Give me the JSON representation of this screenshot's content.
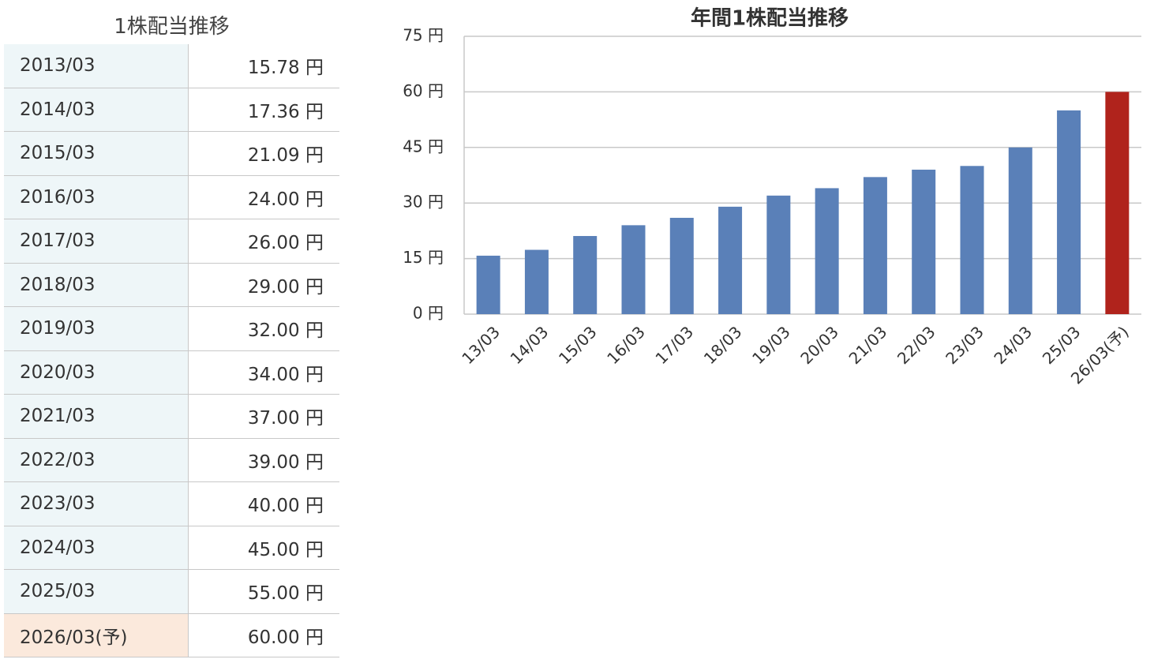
{
  "table": {
    "title": "1株配当推移",
    "rows": [
      [
        "2013/03",
        "15.78 円"
      ],
      [
        "2014/03",
        "17.36 円"
      ],
      [
        "2015/03",
        "21.09 円"
      ],
      [
        "2016/03",
        "24.00 円"
      ],
      [
        "2017/03",
        "26.00 円"
      ],
      [
        "2018/03",
        "29.00 円"
      ],
      [
        "2019/03",
        "32.00 円"
      ],
      [
        "2020/03",
        "34.00 円"
      ],
      [
        "2021/03",
        "37.00 円"
      ],
      [
        "2022/03",
        "39.00 円"
      ],
      [
        "2023/03",
        "40.00 円"
      ],
      [
        "2024/03",
        "45.00 円"
      ],
      [
        "2025/03",
        "55.00 円"
      ],
      [
        "2026/03(予)",
        "60.00 円"
      ]
    ]
  },
  "chart_data": {
    "type": "bar",
    "title": "年間1株配当推移",
    "categories": [
      "13/03",
      "14/03",
      "15/03",
      "16/03",
      "17/03",
      "18/03",
      "19/03",
      "20/03",
      "21/03",
      "22/03",
      "23/03",
      "24/03",
      "25/03",
      "26/03(予)"
    ],
    "values": [
      15.78,
      17.36,
      21.09,
      24,
      26,
      29,
      32,
      34,
      37,
      39,
      40,
      45,
      55,
      60
    ],
    "colors": [
      "#5a80b8",
      "#5a80b8",
      "#5a80b8",
      "#5a80b8",
      "#5a80b8",
      "#5a80b8",
      "#5a80b8",
      "#5a80b8",
      "#5a80b8",
      "#5a80b8",
      "#5a80b8",
      "#5a80b8",
      "#5a80b8",
      "#b0231c"
    ],
    "ylim": [
      0,
      75
    ],
    "yticks": [
      {
        "value": 0,
        "label": "0 円"
      },
      {
        "value": 15,
        "label": "15 円"
      },
      {
        "value": 30,
        "label": "30 円"
      },
      {
        "value": 45,
        "label": "45 円"
      },
      {
        "value": 60,
        "label": "60 円"
      },
      {
        "value": 75,
        "label": "75 円"
      }
    ],
    "grid": true
  }
}
